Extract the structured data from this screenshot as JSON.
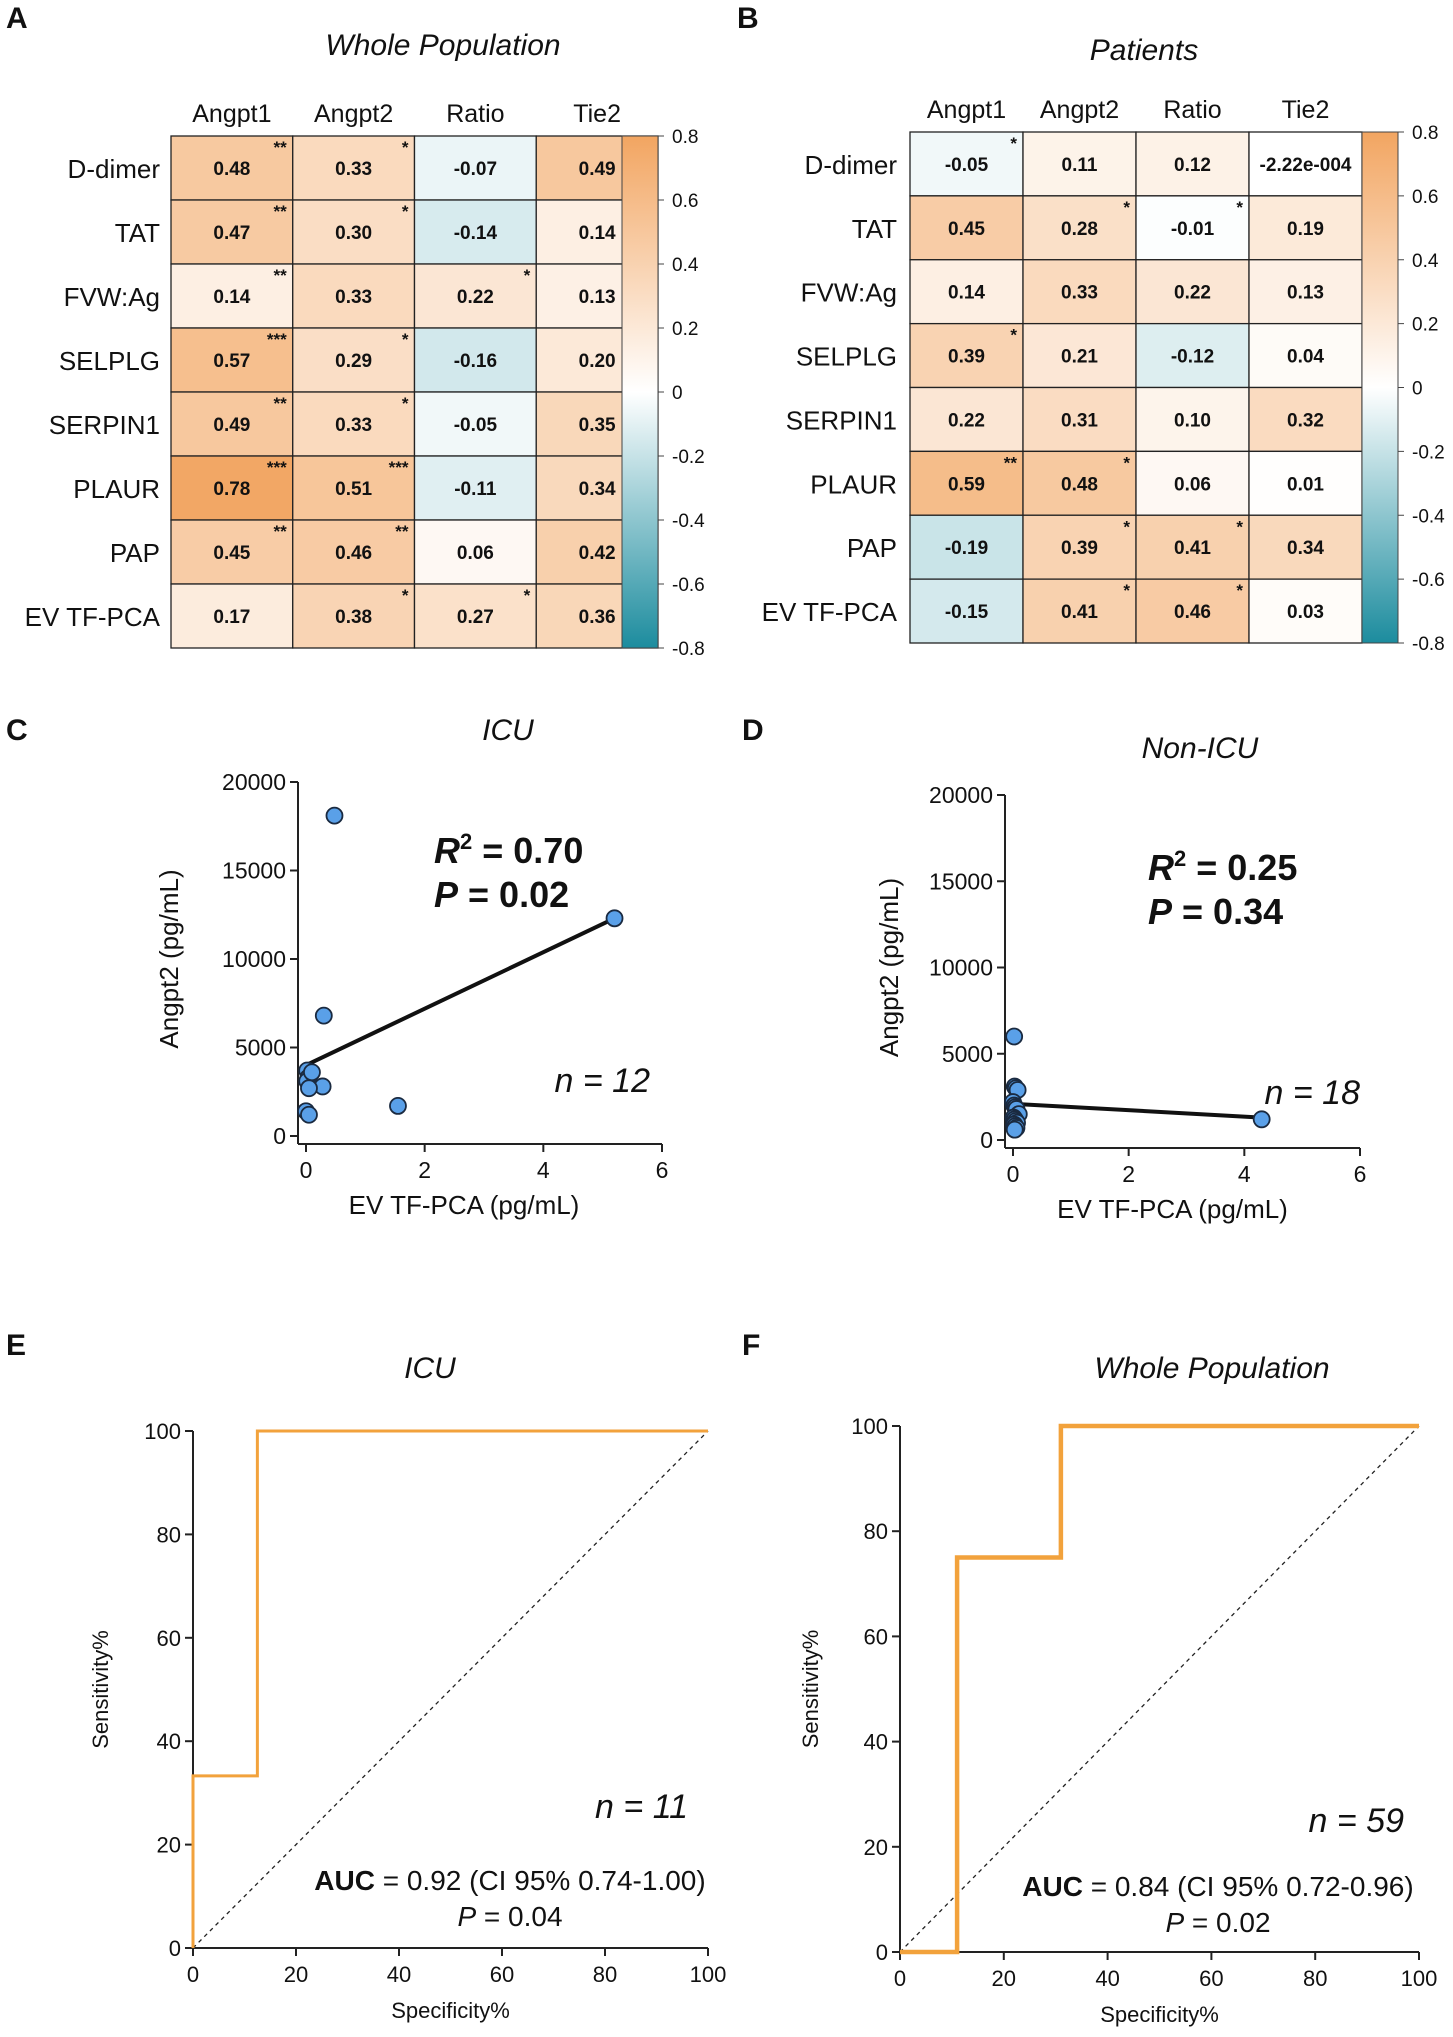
{
  "colors": {
    "pos_max": "#f2a561",
    "zero": "#ffffff",
    "neg_max": "#1c8c9e",
    "point_fill": "#5aa0e8",
    "roc_line": "#f2a23c"
  },
  "colorbar": {
    "ticks": [
      "0.8",
      "0.6",
      "0.4",
      "0.2",
      "0",
      "-0.2",
      "-0.4",
      "-0.6",
      "-0.8"
    ]
  },
  "panels": {
    "A": {
      "letter": "A",
      "title": "Whole Population",
      "columns": [
        "Angpt1",
        "Angpt2",
        "Ratio",
        "Tie2"
      ],
      "rows": [
        "D-dimer",
        "TAT",
        "FVW:Ag",
        "SELPLG",
        "SERPIN1",
        "PLAUR",
        "PAP",
        "EV TF-PCA"
      ],
      "labels": [
        [
          "0.48",
          "0.33",
          "-0.07",
          "0.49"
        ],
        [
          "0.47",
          "0.30",
          "-0.14",
          "0.14"
        ],
        [
          "0.14",
          "0.33",
          "0.22",
          "0.13"
        ],
        [
          "0.57",
          "0.29",
          "-0.16",
          "0.20"
        ],
        [
          "0.49",
          "0.33",
          "-0.05",
          "0.35"
        ],
        [
          "0.78",
          "0.51",
          "-0.11",
          "0.34"
        ],
        [
          "0.45",
          "0.46",
          "0.06",
          "0.42"
        ],
        [
          "0.17",
          "0.38",
          "0.27",
          "0.36"
        ]
      ],
      "stars": [
        [
          "**",
          "*",
          "",
          "**"
        ],
        [
          "**",
          "*",
          "",
          ""
        ],
        [
          "**",
          "",
          "*",
          ""
        ],
        [
          "***",
          "*",
          "",
          ""
        ],
        [
          "**",
          "*",
          "",
          "*"
        ],
        [
          "***",
          "***",
          "",
          "*"
        ],
        [
          "**",
          "**",
          "",
          "*"
        ],
        [
          "",
          "*",
          "*",
          "*"
        ]
      ]
    },
    "B": {
      "letter": "B",
      "title": "Patients",
      "columns": [
        "Angpt1",
        "Angpt2",
        "Ratio",
        "Tie2"
      ],
      "rows": [
        "D-dimer",
        "TAT",
        "FVW:Ag",
        "SELPLG",
        "SERPIN1",
        "PLAUR",
        "PAP",
        "EV TF-PCA"
      ],
      "labels": [
        [
          "-0.05",
          "0.11",
          "0.12",
          "-2.22e-004"
        ],
        [
          "0.45",
          "0.28",
          "-0.01",
          "0.19"
        ],
        [
          "0.14",
          "0.33",
          "0.22",
          "0.13"
        ],
        [
          "0.39",
          "0.21",
          "-0.12",
          "0.04"
        ],
        [
          "0.22",
          "0.31",
          "0.10",
          "0.32"
        ],
        [
          "0.59",
          "0.48",
          "0.06",
          "0.01"
        ],
        [
          "-0.19",
          "0.39",
          "0.41",
          "0.34"
        ],
        [
          "-0.15",
          "0.41",
          "0.46",
          "0.03"
        ]
      ],
      "stars": [
        [
          "*",
          "",
          "",
          ""
        ],
        [
          "",
          "*",
          "*",
          ""
        ],
        [
          "",
          "",
          "",
          ""
        ],
        [
          "*",
          "",
          "",
          ""
        ],
        [
          "",
          "",
          "",
          ""
        ],
        [
          "**",
          "*",
          "",
          ""
        ],
        [
          "",
          "*",
          "*",
          ""
        ],
        [
          "",
          "*",
          "*",
          ""
        ]
      ]
    },
    "C": {
      "letter": "C",
      "title": "ICU",
      "xlabel": "EV TF-PCA (pg/mL)",
      "ylabel": "Angpt2 (pg/mL)",
      "r2_prefix": "R",
      "r2_sup": "2",
      "r2_value": " = 0.70",
      "p_prefix": "P",
      "p_value": " = 0.02",
      "n_text": "n = 12",
      "xticks": [
        "0",
        "2",
        "4",
        "6"
      ],
      "yticks": [
        "0",
        "5000",
        "10000",
        "15000",
        "20000"
      ]
    },
    "D": {
      "letter": "D",
      "title": "Non-ICU",
      "xlabel": "EV TF-PCA (pg/mL)",
      "ylabel": "Angpt2 (pg/mL)",
      "r2_prefix": "R",
      "r2_sup": "2",
      "r2_value": " = 0.25",
      "p_prefix": "P",
      "p_value": " = 0.34",
      "n_text": "n = 18",
      "xticks": [
        "0",
        "2",
        "4",
        "6"
      ],
      "yticks": [
        "0",
        "5000",
        "10000",
        "15000",
        "20000"
      ]
    },
    "E": {
      "letter": "E",
      "title": "ICU",
      "xlabel": "Specificity%",
      "ylabel": "Sensitivity%",
      "n_text": "n = 11",
      "auc_label": "AUC",
      "auc_text": " = 0.92 (CI 95% 0.74-1.00)",
      "p_prefix": "P",
      "p_value": " = 0.04",
      "ticks": [
        "0",
        "20",
        "40",
        "60",
        "80",
        "100"
      ]
    },
    "F": {
      "letter": "F",
      "title": "Whole Population",
      "xlabel": "Specificity%",
      "ylabel": "Sensitivity%",
      "n_text": "n = 59",
      "auc_label": "AUC",
      "auc_text": " = 0.84 (CI 95% 0.72-0.96)",
      "p_prefix": "P",
      "p_value": " = 0.02",
      "ticks": [
        "0",
        "20",
        "40",
        "60",
        "80",
        "100"
      ]
    }
  },
  "chart_data": [
    {
      "type": "heatmap",
      "title": "Whole Population",
      "x_categories": [
        "Angpt1",
        "Angpt2",
        "Ratio",
        "Tie2"
      ],
      "y_categories": [
        "D-dimer",
        "TAT",
        "FVW:Ag",
        "SELPLG",
        "SERPIN1",
        "PLAUR",
        "PAP",
        "EV TF-PCA"
      ],
      "values": [
        [
          0.48,
          0.33,
          -0.07,
          0.49
        ],
        [
          0.47,
          0.3,
          -0.14,
          0.14
        ],
        [
          0.14,
          0.33,
          0.22,
          0.13
        ],
        [
          0.57,
          0.29,
          -0.16,
          0.2
        ],
        [
          0.49,
          0.33,
          -0.05,
          0.35
        ],
        [
          0.78,
          0.51,
          -0.11,
          0.34
        ],
        [
          0.45,
          0.46,
          0.06,
          0.42
        ],
        [
          0.17,
          0.38,
          0.27,
          0.36
        ]
      ],
      "color_range": [
        -0.8,
        0.8
      ]
    },
    {
      "type": "heatmap",
      "title": "Patients",
      "x_categories": [
        "Angpt1",
        "Angpt2",
        "Ratio",
        "Tie2"
      ],
      "y_categories": [
        "D-dimer",
        "TAT",
        "FVW:Ag",
        "SELPLG",
        "SERPIN1",
        "PLAUR",
        "PAP",
        "EV TF-PCA"
      ],
      "values": [
        [
          -0.05,
          0.11,
          0.12,
          -0.000222
        ],
        [
          0.45,
          0.28,
          -0.01,
          0.19
        ],
        [
          0.14,
          0.33,
          0.22,
          0.13
        ],
        [
          0.39,
          0.21,
          -0.12,
          0.04
        ],
        [
          0.22,
          0.31,
          0.1,
          0.32
        ],
        [
          0.59,
          0.48,
          0.06,
          0.01
        ],
        [
          -0.19,
          0.39,
          0.41,
          0.34
        ],
        [
          -0.15,
          0.41,
          0.46,
          0.03
        ]
      ],
      "color_range": [
        -0.8,
        0.8
      ]
    },
    {
      "type": "scatter",
      "title": "ICU",
      "xlabel": "EV TF-PCA (pg/mL)",
      "ylabel": "Angpt2 (pg/mL)",
      "xlim": [
        0,
        6
      ],
      "ylim": [
        0,
        20000
      ],
      "x": [
        0.02,
        0.04,
        0.0,
        0.05,
        0.02,
        0.1,
        0.28,
        0.3,
        0.48,
        1.55,
        5.2,
        0.05
      ],
      "y": [
        3700,
        3300,
        1400,
        1200,
        3100,
        3600,
        2800,
        6800,
        18100,
        1700,
        12300,
        2700
      ],
      "fit_line": {
        "x": [
          0,
          5.2
        ],
        "y": [
          4000,
          12300
        ]
      },
      "r2": 0.7,
      "p": 0.02,
      "n": 12
    },
    {
      "type": "scatter",
      "title": "Non-ICU",
      "xlabel": "EV TF-PCA (pg/mL)",
      "ylabel": "Angpt2 (pg/mL)",
      "xlim": [
        0,
        6
      ],
      "ylim": [
        0,
        20000
      ],
      "x": [
        0.02,
        0.03,
        0.05,
        0.08,
        0.0,
        0.02,
        0.04,
        0.06,
        0.1,
        0.01,
        0.03,
        0.05,
        0.07,
        0.02,
        0.04,
        0.06,
        0.03,
        4.3
      ],
      "y": [
        6000,
        3100,
        3000,
        2900,
        2200,
        2000,
        1900,
        1800,
        1500,
        1300,
        1200,
        1100,
        1000,
        900,
        800,
        700,
        600,
        1200
      ],
      "fit_line": {
        "x": [
          0,
          4.3
        ],
        "y": [
          2100,
          1300
        ]
      },
      "r2": 0.25,
      "p": 0.34,
      "n": 18
    },
    {
      "type": "line",
      "title": "ICU",
      "xlabel": "Specificity%",
      "ylabel": "Sensitivity%",
      "xlim": [
        0,
        100
      ],
      "ylim": [
        0,
        100
      ],
      "roc": {
        "x": [
          0,
          0,
          12.5,
          12.5,
          100
        ],
        "y": [
          0,
          33.3,
          33.3,
          100,
          100
        ]
      },
      "auc": 0.92,
      "ci95": [
        0.74,
        1.0
      ],
      "p": 0.04,
      "n": 11
    },
    {
      "type": "line",
      "title": "Whole Population",
      "xlabel": "Specificity%",
      "ylabel": "Sensitivity%",
      "xlim": [
        0,
        100
      ],
      "ylim": [
        0,
        100
      ],
      "roc": {
        "x": [
          0,
          11,
          11,
          31,
          31,
          100
        ],
        "y": [
          0,
          0,
          75,
          75,
          100,
          100
        ]
      },
      "auc": 0.84,
      "ci95": [
        0.72,
        0.96
      ],
      "p": 0.02,
      "n": 59
    }
  ]
}
